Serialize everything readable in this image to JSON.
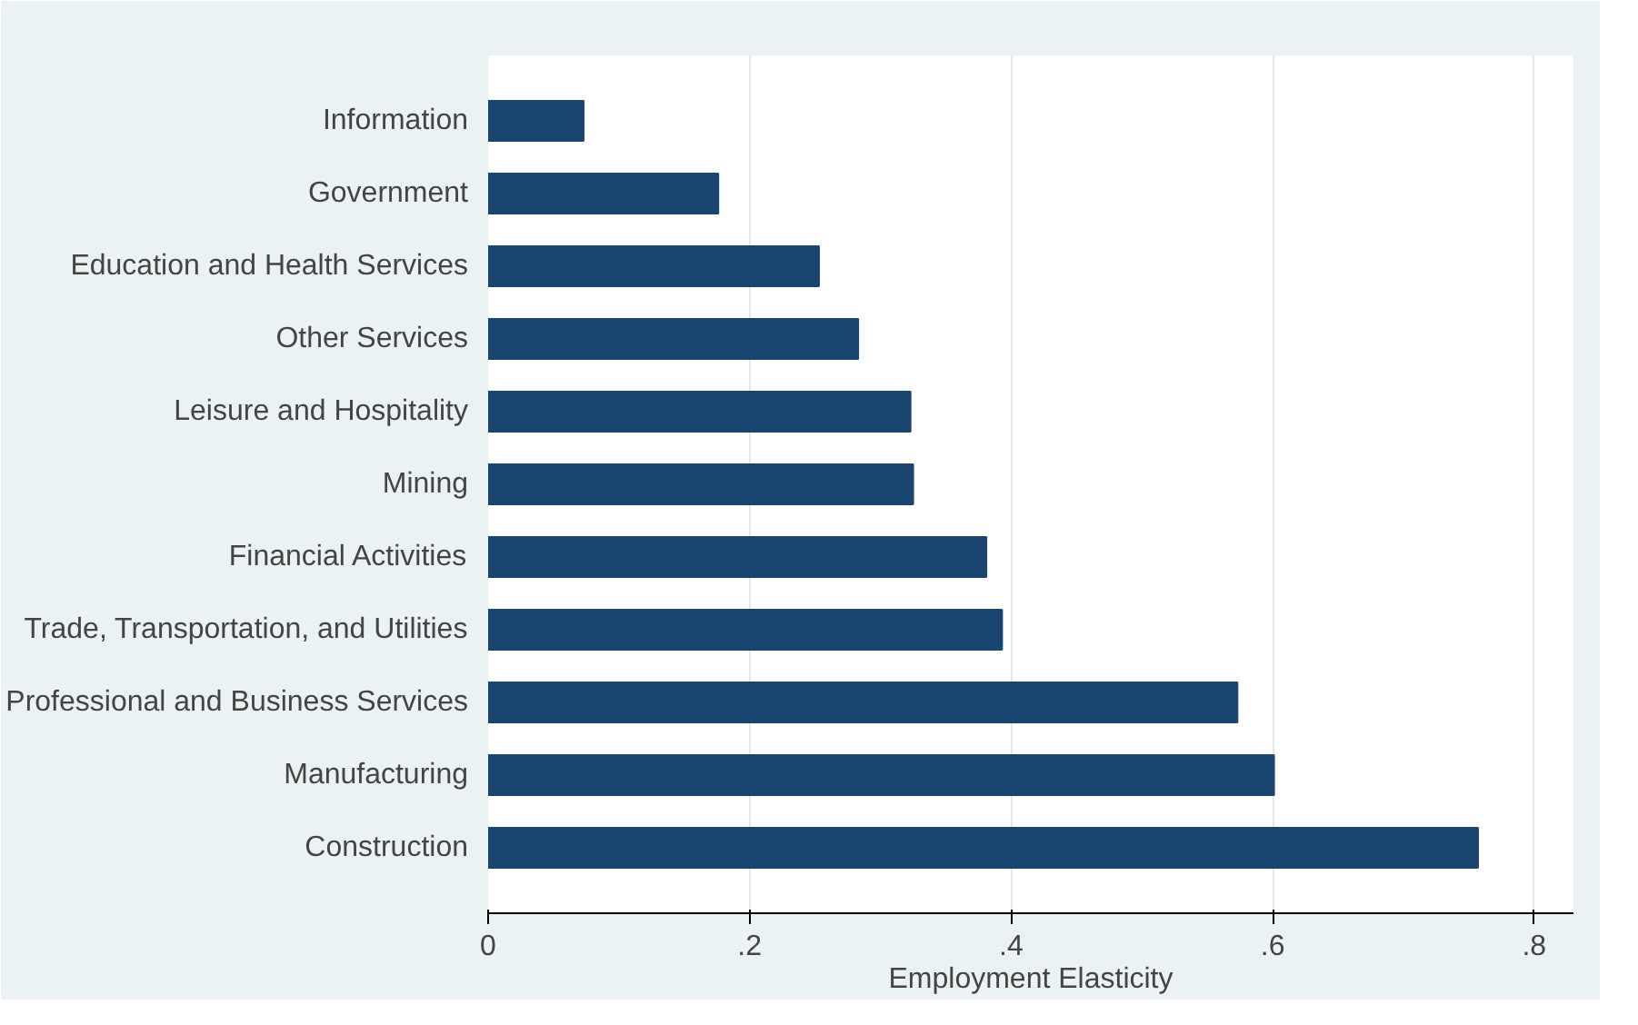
{
  "chart_data": {
    "type": "bar",
    "orientation": "horizontal",
    "xlabel": "Employment Elasticity",
    "categories": [
      "Information",
      "Government",
      "Education and Health Services",
      "Other Services",
      "Leisure and Hospitality",
      "Mining",
      "Financial Activities",
      "Trade, Transportation, and Utilities",
      "Professional and Business Services",
      "Manufacturing",
      "Construction"
    ],
    "values": [
      0.073,
      0.176,
      0.253,
      0.283,
      0.323,
      0.325,
      0.381,
      0.393,
      0.573,
      0.601,
      0.757
    ],
    "color": "#1a4570",
    "xlim": [
      0,
      0.83
    ],
    "xticks": [
      0,
      {
        "value": 0.2,
        "label": ".2"
      },
      {
        "value": 0.4,
        "label": ".4"
      },
      {
        "value": 0.6,
        "label": ".6"
      },
      {
        "value": 0.8,
        "label": ".8"
      }
    ],
    "grid": "x"
  }
}
